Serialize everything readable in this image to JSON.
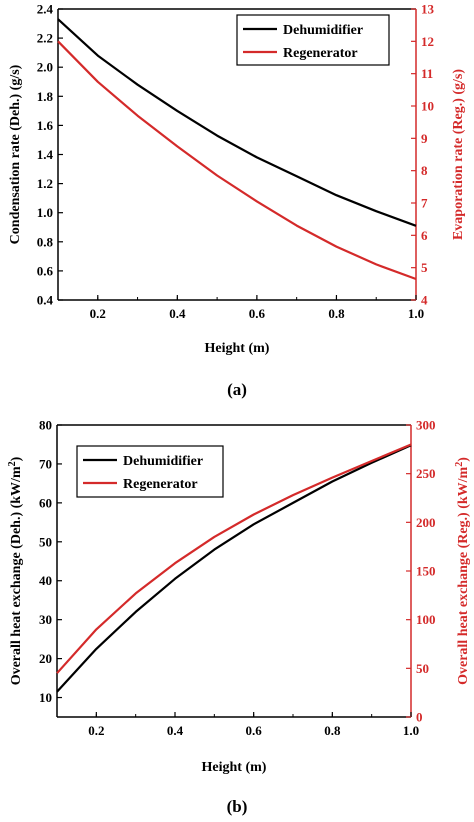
{
  "chart_data": [
    {
      "type": "line",
      "panel_label": "(a)",
      "xlabel": "Height (m)",
      "ylabel": "Condensation rate (Deh.) (g/s)",
      "y2label": "Evaporation rate (Reg.) (g/s)",
      "xlim": [
        0.1,
        1.0
      ],
      "ylim": [
        0.4,
        2.4
      ],
      "y2lim": [
        4,
        13
      ],
      "xticks": [
        0.2,
        0.4,
        0.6,
        0.8,
        1.0
      ],
      "yticks": [
        0.4,
        0.6,
        0.8,
        1.0,
        1.2,
        1.4,
        1.6,
        1.8,
        2.0,
        2.2,
        2.4
      ],
      "y2ticks": [
        4,
        5,
        6,
        7,
        8,
        9,
        10,
        11,
        12,
        13
      ],
      "legend_position": "top-right",
      "grid": false,
      "series": [
        {
          "name": "Dehumidifier",
          "axis": "left",
          "color": "#000000",
          "x": [
            0.1,
            0.2,
            0.3,
            0.4,
            0.5,
            0.6,
            0.7,
            0.8,
            0.9,
            1.0
          ],
          "y": [
            2.33,
            2.08,
            1.88,
            1.7,
            1.53,
            1.38,
            1.25,
            1.12,
            1.01,
            0.91
          ]
        },
        {
          "name": "Regenerator",
          "axis": "right",
          "color": "#d42a2a",
          "x": [
            0.1,
            0.2,
            0.3,
            0.4,
            0.5,
            0.6,
            0.7,
            0.8,
            0.9,
            1.0
          ],
          "y": [
            12.0,
            10.75,
            9.7,
            8.75,
            7.85,
            7.05,
            6.3,
            5.65,
            5.1,
            4.65
          ]
        }
      ]
    },
    {
      "type": "line",
      "panel_label": "(b)",
      "xlabel": "Height (m)",
      "ylabel": "Overall heat exchange (Deh.) (kW/m",
      "y2label": "Overall heat exchange (Reg.) (kW/m",
      "label_sup": "2",
      "label_close": ")",
      "xlim": [
        0.1,
        1.0
      ],
      "ylim": [
        5,
        80
      ],
      "y2lim": [
        0,
        300
      ],
      "xticks": [
        0.2,
        0.4,
        0.6,
        0.8,
        1.0
      ],
      "yticks": [
        10,
        20,
        30,
        40,
        50,
        60,
        70,
        80
      ],
      "y2ticks": [
        0,
        50,
        100,
        150,
        200,
        250,
        300
      ],
      "legend_position": "top-left",
      "grid": false,
      "series": [
        {
          "name": "Dehumidifier",
          "axis": "left",
          "color": "#000000",
          "x": [
            0.1,
            0.2,
            0.3,
            0.4,
            0.5,
            0.6,
            0.7,
            0.8,
            0.9,
            1.0
          ],
          "y": [
            11.5,
            22.5,
            32.0,
            40.5,
            48.0,
            54.5,
            60.0,
            65.5,
            70.3,
            74.8
          ]
        },
        {
          "name": "Regenerator",
          "axis": "right",
          "color": "#d42a2a",
          "x": [
            0.1,
            0.2,
            0.3,
            0.4,
            0.5,
            0.6,
            0.7,
            0.8,
            0.9,
            1.0
          ],
          "y": [
            45,
            90,
            127,
            158,
            185,
            208,
            228,
            246,
            263,
            280
          ]
        }
      ]
    }
  ]
}
